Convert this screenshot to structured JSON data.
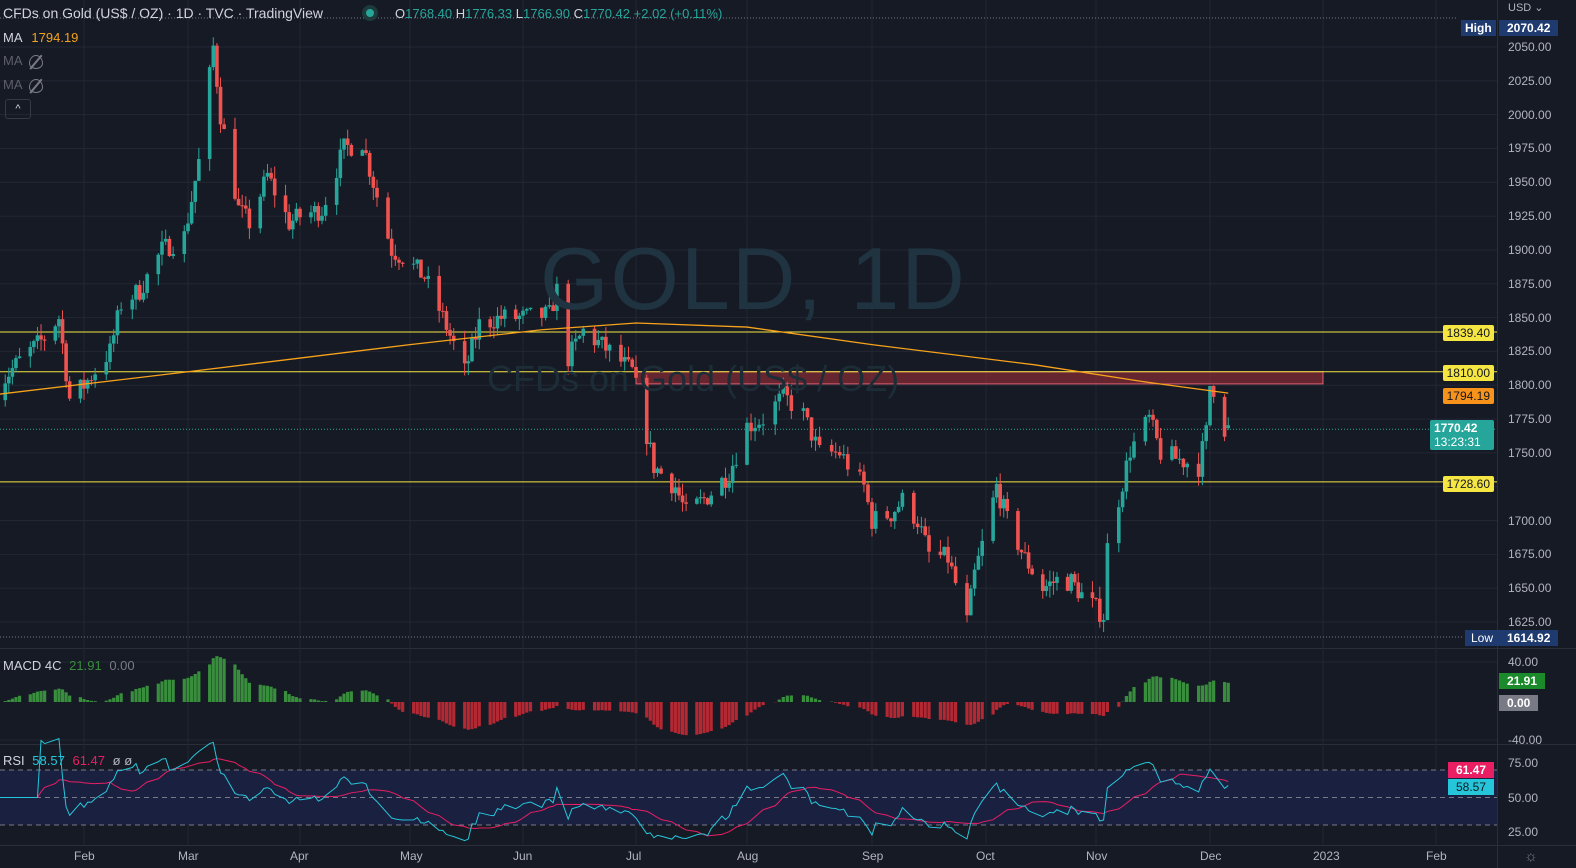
{
  "header": {
    "title": "CFDs on Gold (US$ / OZ) · 1D · TVC · TradingView",
    "o_label": "O",
    "o": "1768.40",
    "h_label": "H",
    "h": "1776.33",
    "l_label": "L",
    "l": "1766.90",
    "c_label": "C",
    "c": "1770.42",
    "change": "+2.02 (+0.11%)"
  },
  "indicators": {
    "ma1_label": "MA",
    "ma1_value": "1794.19",
    "ma2_label": "MA",
    "ma3_label": "MA",
    "collapse": "^",
    "macd_label": "MACD 4C",
    "macd_value": "21.91",
    "macd_zero": "0.00",
    "rsi_label": "RSI",
    "rsi_value": "58.57",
    "rsi_ma": "61.47",
    "rsi_x1": "ø",
    "rsi_x2": "ø"
  },
  "watermark": {
    "symbol": "GOLD, 1D",
    "desc": "CFDs on Gold (US$ / OZ)"
  },
  "axis": {
    "currency": "USD ⌄",
    "price_ticks": [
      "2050.00",
      "2025.00",
      "2000.00",
      "1975.00",
      "1950.00",
      "1925.00",
      "1900.00",
      "1875.00",
      "1850.00",
      "1825.00",
      "1800.00",
      "1775.00",
      "1750.00",
      "1700.00",
      "1675.00",
      "1650.00",
      "1625.00"
    ],
    "macd_ticks": [
      "40.00",
      "-40.00"
    ],
    "rsi_ticks": [
      "75.00",
      "50.00",
      "25.00"
    ],
    "x_ticks": [
      "Feb",
      "Mar",
      "Apr",
      "May",
      "Jun",
      "Jul",
      "Aug",
      "Sep",
      "Oct",
      "Nov",
      "Dec",
      "2023",
      "Feb"
    ]
  },
  "labels": {
    "high_tag": "High",
    "high_value": "2070.42",
    "low_tag": "Low",
    "low_value": "1614.92",
    "last_price": "1770.42",
    "countdown": "13:23:31",
    "ma_price": "1794.19",
    "level1": "1839.40",
    "level2": "1810.00",
    "level3": "1728.60",
    "macd_tag": "21.91",
    "zero_tag": "0.00",
    "rsi_ma_tag": "61.47",
    "rsi_tag": "58.57"
  },
  "colors": {
    "up": "#26a69a",
    "down": "#ef5350",
    "ma": "#f7a21b",
    "level": "#f5e642",
    "zone": "#a8323a",
    "rsi": "#26c6da",
    "rsi_ma": "#e91e63",
    "macd_up": "#388e3c",
    "macd_down": "#b22833"
  },
  "chart_data": {
    "type": "candlestick",
    "symbol": "GOLD",
    "interval": "1D",
    "ylim": [
      1610,
      2075
    ],
    "closes": [
      [
        "2022-01-07",
        1797
      ],
      [
        "2022-01-14",
        1818
      ],
      [
        "2022-01-21",
        1835
      ],
      [
        "2022-01-25",
        1850
      ],
      [
        "2022-01-28",
        1790
      ],
      [
        "2022-02-01",
        1800
      ],
      [
        "2022-02-08",
        1825
      ],
      [
        "2022-02-11",
        1860
      ],
      [
        "2022-02-16",
        1870
      ],
      [
        "2022-02-22",
        1900
      ],
      [
        "2022-02-28",
        1910
      ],
      [
        "2022-03-04",
        1965
      ],
      [
        "2022-03-08",
        2050
      ],
      [
        "2022-03-10",
        2000
      ],
      [
        "2022-03-15",
        1930
      ],
      [
        "2022-03-18",
        1920
      ],
      [
        "2022-03-23",
        1955
      ],
      [
        "2022-03-29",
        1920
      ],
      [
        "2022-04-01",
        1925
      ],
      [
        "2022-04-07",
        1930
      ],
      [
        "2022-04-13",
        1975
      ],
      [
        "2022-04-18",
        1980
      ],
      [
        "2022-04-21",
        1950
      ],
      [
        "2022-04-26",
        1900
      ],
      [
        "2022-04-29",
        1895
      ],
      [
        "2022-05-05",
        1880
      ],
      [
        "2022-05-10",
        1850
      ],
      [
        "2022-05-16",
        1810
      ],
      [
        "2022-05-20",
        1845
      ],
      [
        "2022-05-26",
        1850
      ],
      [
        "2022-06-01",
        1850
      ],
      [
        "2022-06-08",
        1852
      ],
      [
        "2022-06-10",
        1870
      ],
      [
        "2022-06-13",
        1820
      ],
      [
        "2022-06-17",
        1840
      ],
      [
        "2022-06-24",
        1825
      ],
      [
        "2022-06-30",
        1810
      ],
      [
        "2022-07-06",
        1740
      ],
      [
        "2022-07-12",
        1725
      ],
      [
        "2022-07-15",
        1705
      ],
      [
        "2022-07-21",
        1718
      ],
      [
        "2022-07-27",
        1735
      ],
      [
        "2022-08-01",
        1770
      ],
      [
        "2022-08-05",
        1775
      ],
      [
        "2022-08-10",
        1792
      ],
      [
        "2022-08-15",
        1778
      ],
      [
        "2022-08-19",
        1750
      ],
      [
        "2022-08-24",
        1750
      ],
      [
        "2022-08-30",
        1725
      ],
      [
        "2022-09-01",
        1700
      ],
      [
        "2022-09-06",
        1705
      ],
      [
        "2022-09-09",
        1715
      ],
      [
        "2022-09-13",
        1700
      ],
      [
        "2022-09-16",
        1675
      ],
      [
        "2022-09-21",
        1672
      ],
      [
        "2022-09-26",
        1625
      ],
      [
        "2022-09-28",
        1660
      ],
      [
        "2022-10-04",
        1725
      ],
      [
        "2022-10-07",
        1700
      ],
      [
        "2022-10-12",
        1672
      ],
      [
        "2022-10-17",
        1650
      ],
      [
        "2022-10-21",
        1656
      ],
      [
        "2022-10-25",
        1655
      ],
      [
        "2022-10-28",
        1645
      ],
      [
        "2022-11-03",
        1630
      ],
      [
        "2022-11-04",
        1680
      ],
      [
        "2022-11-10",
        1752
      ],
      [
        "2022-11-15",
        1775
      ],
      [
        "2022-11-18",
        1750
      ],
      [
        "2022-11-23",
        1745
      ],
      [
        "2022-11-28",
        1740
      ],
      [
        "2022-11-30",
        1765
      ],
      [
        "2022-12-01",
        1800
      ],
      [
        "2022-12-02",
        1798
      ],
      [
        "2022-12-05",
        1768
      ],
      [
        "2022-12-06",
        1770.42
      ]
    ],
    "ma": [
      [
        "2022-01-07",
        1793
      ],
      [
        "2022-03-01",
        1810
      ],
      [
        "2022-05-01",
        1830
      ],
      [
        "2022-06-06",
        1841
      ],
      [
        "2022-07-01",
        1846
      ],
      [
        "2022-08-01",
        1843
      ],
      [
        "2022-09-01",
        1830
      ],
      [
        "2022-10-15",
        1815
      ],
      [
        "2022-11-15",
        1802
      ],
      [
        "2022-12-06",
        1794.19
      ]
    ],
    "levels": [
      1839.4,
      1810.0,
      1728.6
    ],
    "zone": {
      "from": "2022-07-01",
      "to": "2023-01-01",
      "low": 1801,
      "high": 1810
    },
    "high": 2070.42,
    "low": 1614.92,
    "last": 1770.42,
    "macd": {
      "ylim": [
        -40,
        40
      ]
    },
    "rsi": {
      "ylim": [
        25,
        75
      ],
      "bands": [
        70,
        50,
        30
      ]
    }
  }
}
